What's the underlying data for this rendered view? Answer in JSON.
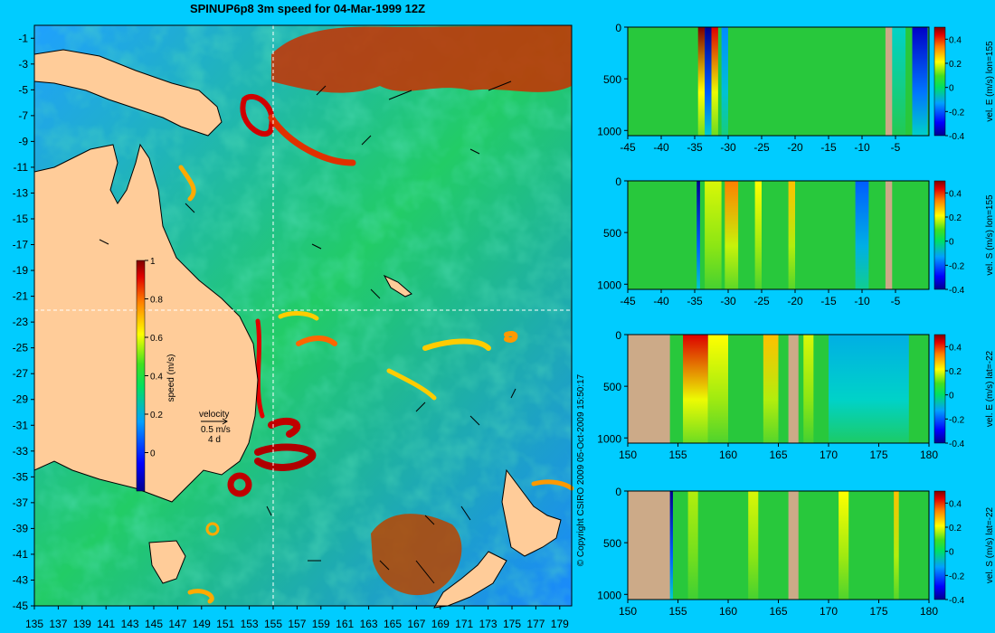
{
  "title": "SPINUP6p8 3m speed for 04-Mar-1999 12Z",
  "copyright": "© Copyright CSIRO 2009   05-Oct-2009 15:50:17",
  "colors": {
    "background": "#00ccff",
    "land": "#ffcc99",
    "section_land": "#ccaa88",
    "frame": "#000000"
  },
  "chart_data": [
    {
      "type": "heatmap",
      "name": "speed map",
      "xlim": [
        135,
        180
      ],
      "ylim": [
        -45,
        0
      ],
      "x_ticks": [
        "135",
        "137",
        "139",
        "141",
        "143",
        "145",
        "147",
        "149",
        "151",
        "153",
        "155",
        "157",
        "159",
        "161",
        "163",
        "165",
        "167",
        "169",
        "171",
        "173",
        "175",
        "177",
        "179"
      ],
      "y_ticks": [
        "-1",
        "-3",
        "-5",
        "-7",
        "-9",
        "-11",
        "-13",
        "-15",
        "-17",
        "-19",
        "-21",
        "-23",
        "-25",
        "-27",
        "-29",
        "-31",
        "-33",
        "-35",
        "-37",
        "-39",
        "-41",
        "-43",
        "-45"
      ],
      "crosshair": {
        "lon": 155,
        "lat": -22
      },
      "colorbar": {
        "label": "speed (m/s)",
        "range": [
          -0.2,
          1
        ],
        "ticks": [
          "0",
          "0.2",
          "0.4",
          "0.6",
          "0.8",
          "1"
        ],
        "colormap": "jet"
      },
      "vector_legend": {
        "label": "velocity",
        "speed": "0.5 m/s",
        "duration": "4 d"
      }
    },
    {
      "type": "heatmap",
      "name": "vel E section lon=155",
      "colorbar_label": "vel. E (m/s) lon=155",
      "x_ticks": [
        "-45",
        "-40",
        "-35",
        "-30",
        "-25",
        "-20",
        "-15",
        "-10",
        "-5"
      ],
      "xlim": [
        -45,
        0
      ],
      "y_ticks": [
        "0",
        "500",
        "1000"
      ],
      "ylim": [
        0,
        1050
      ],
      "colorbar": {
        "range": [
          -0.4,
          0.5
        ],
        "ticks": [
          "0.4",
          "0.2",
          "0",
          "-0.2",
          "-0.4"
        ]
      },
      "features": {
        "land_bands": [
          [
            -6.5,
            -5.5
          ]
        ],
        "bands": [
          [
            -34.5,
            -33.5,
            0.5
          ],
          [
            -33.5,
            -32.5,
            -0.4
          ],
          [
            -32.5,
            -31.5,
            0.45
          ],
          [
            -31,
            -30,
            -0.15
          ],
          [
            -6,
            -3.5,
            -0.05
          ],
          [
            -2.5,
            -0.2,
            -0.35
          ]
        ]
      }
    },
    {
      "type": "heatmap",
      "name": "vel S section lon=155",
      "colorbar_label": "vel. S (m/s) lon=155",
      "x_ticks": [
        "-45",
        "-40",
        "-35",
        "-30",
        "-25",
        "-20",
        "-15",
        "-10",
        "-5"
      ],
      "xlim": [
        -45,
        0
      ],
      "y_ticks": [
        "0",
        "500",
        "1000"
      ],
      "ylim": [
        0,
        1050
      ],
      "colorbar": {
        "range": [
          -0.4,
          0.5
        ],
        "ticks": [
          "0.4",
          "0.2",
          "0",
          "-0.2",
          "-0.4"
        ]
      },
      "features": {
        "land_bands": [
          [
            -6.5,
            -5.5
          ]
        ],
        "bands": [
          [
            -34.7,
            -34.2,
            -0.4
          ],
          [
            -33.5,
            -31,
            0.2
          ],
          [
            -30.5,
            -28.5,
            0.35
          ],
          [
            -26,
            -25,
            0.25
          ],
          [
            -21,
            -20,
            0.3
          ],
          [
            -11,
            -9,
            -0.2
          ]
        ]
      }
    },
    {
      "type": "heatmap",
      "name": "vel E section lat=-22",
      "colorbar_label": "vel. E (m/s) lat=-22",
      "x_ticks": [
        "150",
        "155",
        "160",
        "165",
        "170",
        "175",
        "180"
      ],
      "xlim": [
        150,
        180
      ],
      "y_ticks": [
        "0",
        "500",
        "1000"
      ],
      "ylim": [
        0,
        1050
      ],
      "colorbar": {
        "range": [
          -0.4,
          0.5
        ],
        "ticks": [
          "0.4",
          "0.2",
          "0",
          "-0.2",
          "-0.4"
        ]
      },
      "features": {
        "land_bands": [
          [
            150,
            154.2
          ],
          [
            166,
            167
          ]
        ],
        "bands": [
          [
            155.5,
            158,
            0.45
          ],
          [
            158,
            160,
            0.25
          ],
          [
            163.5,
            165,
            0.3
          ],
          [
            167.5,
            168.5,
            0.2
          ],
          [
            170,
            178,
            -0.1
          ]
        ]
      }
    },
    {
      "type": "heatmap",
      "name": "vel S section lat=-22",
      "colorbar_label": "vel. S (m/s) lat=-22",
      "x_ticks": [
        "150",
        "155",
        "160",
        "165",
        "170",
        "175",
        "180"
      ],
      "xlim": [
        150,
        180
      ],
      "y_ticks": [
        "0",
        "500",
        "1000"
      ],
      "ylim": [
        0,
        1050
      ],
      "colorbar": {
        "range": [
          -0.4,
          0.5
        ],
        "ticks": [
          "0.4",
          "0.2",
          "0",
          "-0.2",
          "-0.4"
        ]
      },
      "features": {
        "land_bands": [
          [
            150,
            154.2
          ],
          [
            166,
            167
          ]
        ],
        "bands": [
          [
            154,
            154.5,
            -0.4
          ],
          [
            156,
            157,
            0.15
          ],
          [
            162,
            163,
            0.2
          ],
          [
            171,
            172,
            0.25
          ],
          [
            176.5,
            177,
            0.3
          ]
        ]
      }
    }
  ]
}
